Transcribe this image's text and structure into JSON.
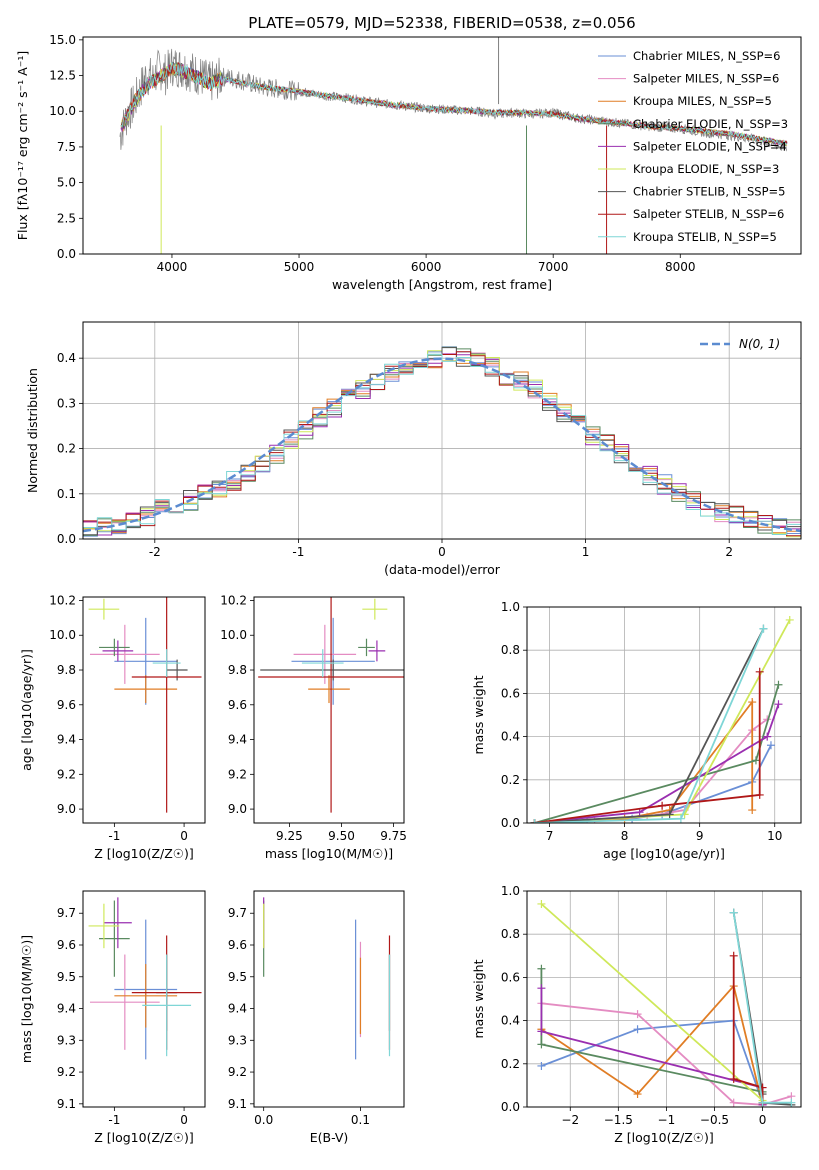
{
  "figure_title": "PLATE=0579, MJD=52338, FIBERID=0538, z=0.056",
  "series_names": [
    "Chabrier MILES, N_SSP=6",
    "Salpeter MILES, N_SSP=6",
    "Kroupa MILES, N_SSP=5",
    "Chabrier ELODIE, N_SSP=3",
    "Salpeter ELODIE, N_SSP=4",
    "Kroupa ELODIE, N_SSP=3",
    "Chabrier STELIB, N_SSP=5",
    "Salpeter STELIB, N_SSP=6",
    "Kroupa STELIB, N_SSP=5"
  ],
  "series_colors": [
    "#6a8fd6",
    "#e48cc2",
    "#e07d25",
    "#5a8a60",
    "#9a2fb0",
    "#cfe85a",
    "#555555",
    "#b01818",
    "#7fd6d6"
  ],
  "chart_data": [
    {
      "id": "spectrum",
      "type": "line",
      "title": "PLATE=0579, MJD=52338, FIBERID=0538, z=0.056",
      "xlabel": "wavelength [Angstrom, rest frame]",
      "ylabel": "Flux [fλ10⁻¹⁷ erg cm⁻² s⁻¹ A⁻¹]",
      "xlim": [
        3300,
        8950
      ],
      "ylim": [
        0,
        15.2
      ],
      "xticks": [
        4000,
        5000,
        6000,
        7000,
        8000
      ],
      "yticks": [
        0.0,
        2.5,
        5.0,
        7.5,
        10.0,
        12.5,
        15.0
      ],
      "legend_position": "top-right",
      "data_color": "#808080",
      "data_x": [
        3600,
        3650,
        3700,
        3750,
        3800,
        3850,
        3900,
        3950,
        4000,
        4100,
        4200,
        4300,
        4400,
        4500,
        4600,
        4700,
        4800,
        4900,
        5000,
        5200,
        5400,
        5600,
        5800,
        6000,
        6200,
        6400,
        6550,
        6700,
        6800,
        7000,
        7200,
        7400,
        7600,
        7800,
        8000,
        8200,
        8400,
        8600,
        8800
      ],
      "data_y": [
        8.5,
        9.8,
        10.5,
        11.5,
        12.6,
        12.2,
        13.0,
        12.6,
        13.2,
        13.0,
        12.6,
        12.0,
        12.4,
        12.3,
        12.0,
        11.7,
        11.6,
        11.5,
        11.4,
        11.1,
        10.9,
        10.6,
        10.4,
        10.2,
        10.1,
        10.0,
        9.8,
        9.9,
        9.8,
        9.9,
        9.5,
        9.3,
        9.1,
        8.9,
        8.8,
        8.5,
        8.3,
        8.0,
        7.5
      ],
      "model_x": [
        3600,
        3700,
        3800,
        3900,
        4000,
        4100,
        4200,
        4300,
        4400,
        4600,
        4800,
        5000,
        5200,
        5400,
        5600,
        5800,
        6000,
        6200,
        6400,
        6600,
        6800,
        7000,
        7200,
        7400,
        7600,
        7800,
        8000,
        8200,
        8400,
        8600,
        8800
      ],
      "model_y": [
        8.8,
        10.6,
        11.8,
        12.4,
        13.0,
        12.8,
        12.4,
        11.9,
        12.3,
        11.9,
        11.6,
        11.4,
        11.1,
        10.9,
        10.6,
        10.4,
        10.2,
        10.1,
        10.0,
        9.9,
        9.9,
        9.8,
        9.5,
        9.3,
        9.1,
        8.9,
        8.8,
        8.6,
        8.4,
        8.1,
        7.8
      ]
    },
    {
      "id": "residuals",
      "type": "line",
      "xlabel": "(data-model)/error",
      "ylabel": "Normed distribution",
      "xlim": [
        -2.5,
        2.5
      ],
      "ylim": [
        0,
        0.48
      ],
      "xticks": [
        -2,
        -1,
        0,
        1,
        2
      ],
      "yticks": [
        0.0,
        0.1,
        0.2,
        0.3,
        0.4
      ],
      "grid": true,
      "legend_position": "top-right",
      "legend_label": "N(0, 1)",
      "normal_color": "#5b8bd0",
      "bin_edges_start": -2.5,
      "bin_width": 0.1,
      "hist_base": [
        0.02,
        0.025,
        0.03,
        0.04,
        0.05,
        0.065,
        0.07,
        0.085,
        0.1,
        0.11,
        0.13,
        0.15,
        0.17,
        0.19,
        0.22,
        0.24,
        0.27,
        0.29,
        0.32,
        0.33,
        0.35,
        0.37,
        0.38,
        0.39,
        0.4,
        0.405,
        0.4,
        0.39,
        0.38,
        0.36,
        0.35,
        0.33,
        0.3,
        0.28,
        0.26,
        0.23,
        0.21,
        0.19,
        0.16,
        0.14,
        0.12,
        0.1,
        0.085,
        0.07,
        0.06,
        0.05,
        0.04,
        0.03,
        0.025,
        0.02
      ]
    },
    {
      "id": "age-vs-Z",
      "type": "scatter",
      "xlabel": "Z [log10(Z/Z☉)]",
      "ylabel": "age  [log10(age/yr)]",
      "xlim": [
        -1.45,
        0.3
      ],
      "ylim": [
        8.92,
        10.22
      ],
      "xticks": [
        -1,
        0
      ],
      "yticks": [
        9.0,
        9.2,
        9.4,
        9.6,
        9.8,
        10.0,
        10.2
      ],
      "points": [
        {
          "x": -0.55,
          "y": 9.85,
          "xerr": 0.45,
          "yerr": 0.25
        },
        {
          "x": -0.85,
          "y": 9.89,
          "xerr": 0.5,
          "yerr": 0.17
        },
        {
          "x": -0.55,
          "y": 9.69,
          "xerr": 0.45,
          "yerr": 0.08
        },
        {
          "x": -1.0,
          "y": 9.93,
          "xerr": 0.22,
          "yerr": 0.05
        },
        {
          "x": -0.95,
          "y": 9.91,
          "xerr": 0.22,
          "yerr": 0.06
        },
        {
          "x": -1.15,
          "y": 10.15,
          "xerr": 0.22,
          "yerr": 0.06
        },
        {
          "x": -0.1,
          "y": 9.8,
          "xerr": 0.15,
          "yerr": 0.06
        },
        {
          "x": -0.25,
          "y": 9.76,
          "xerr": 0.5,
          "yerr": 0.78
        },
        {
          "x": -0.25,
          "y": 9.84,
          "xerr": 0.2,
          "yerr": 0.08
        }
      ]
    },
    {
      "id": "age-vs-mass",
      "type": "scatter",
      "xlabel": "mass [log10(M/M☉)]",
      "ylabel": "",
      "xlim": [
        9.08,
        9.8
      ],
      "ylim": [
        8.92,
        10.22
      ],
      "xticks": [
        9.25,
        9.5,
        9.75
      ],
      "yticks": [
        9.0,
        9.2,
        9.4,
        9.6,
        9.8,
        10.0,
        10.2
      ],
      "points": [
        {
          "x": 9.46,
          "y": 9.85,
          "xerr": 0.2,
          "yerr": 0.25
        },
        {
          "x": 9.42,
          "y": 9.89,
          "xerr": 0.15,
          "yerr": 0.17
        },
        {
          "x": 9.44,
          "y": 9.69,
          "xerr": 0.1,
          "yerr": 0.08
        },
        {
          "x": 9.62,
          "y": 9.93,
          "xerr": 0.04,
          "yerr": 0.05
        },
        {
          "x": 9.67,
          "y": 9.91,
          "xerr": 0.04,
          "yerr": 0.06
        },
        {
          "x": 9.66,
          "y": 10.15,
          "xerr": 0.06,
          "yerr": 0.06
        },
        {
          "x": 9.46,
          "y": 9.8,
          "xerr": 0.35,
          "yerr": 0.06
        },
        {
          "x": 9.45,
          "y": 9.76,
          "xerr": 0.35,
          "yerr": 0.78
        },
        {
          "x": 9.41,
          "y": 9.84,
          "xerr": 0.1,
          "yerr": 0.08
        }
      ]
    },
    {
      "id": "massweight-vs-age",
      "type": "line",
      "xlabel": "age  [log10(age/yr)]",
      "ylabel": "mass weight",
      "xlim": [
        6.7,
        10.35
      ],
      "ylim": [
        0,
        1.0
      ],
      "xticks": [
        7,
        8,
        9,
        10
      ],
      "yticks": [
        0.0,
        0.2,
        0.4,
        0.6,
        0.8,
        1.0
      ],
      "grid": true,
      "series": [
        {
          "name": "Chabrier MILES, N_SSP=6",
          "x": [
            6.8,
            7.5,
            8.1,
            8.5,
            9.7,
            9.95
          ],
          "y": [
            0.0,
            0.01,
            0.02,
            0.04,
            0.19,
            0.36
          ]
        },
        {
          "name": "Salpeter MILES, N_SSP=6",
          "x": [
            6.8,
            7.6,
            8.3,
            8.8,
            9.7,
            9.9
          ],
          "y": [
            0.0,
            0.01,
            0.03,
            0.06,
            0.43,
            0.48
          ]
        },
        {
          "name": "Kroupa MILES, N_SSP=5",
          "x": [
            6.8,
            8.0,
            8.6,
            9.7,
            9.7
          ],
          "y": [
            0.0,
            0.02,
            0.06,
            0.56,
            0.06
          ]
        },
        {
          "name": "Chabrier ELODIE, N_SSP=3",
          "x": [
            6.8,
            9.75,
            10.05
          ],
          "y": [
            0.0,
            0.29,
            0.64
          ]
        },
        {
          "name": "Salpeter ELODIE, N_SSP=4",
          "x": [
            6.8,
            8.2,
            9.9,
            10.05
          ],
          "y": [
            0.0,
            0.05,
            0.4,
            0.55
          ]
        },
        {
          "name": "Kroupa ELODIE, N_SSP=3",
          "x": [
            6.8,
            8.8,
            10.2
          ],
          "y": [
            0.0,
            0.04,
            0.94
          ]
        },
        {
          "name": "Chabrier STELIB, N_SSP=5",
          "x": [
            6.8,
            8.6,
            9.85
          ],
          "y": [
            0.0,
            0.04,
            0.9
          ]
        },
        {
          "name": "Salpeter STELIB, N_SSP=6",
          "x": [
            6.8,
            8.5,
            9.8,
            9.8
          ],
          "y": [
            0.0,
            0.08,
            0.13,
            0.7
          ]
        },
        {
          "name": "Kroupa STELIB, N_SSP=5",
          "x": [
            6.8,
            8.75,
            9.85
          ],
          "y": [
            0.0,
            0.02,
            0.9
          ]
        }
      ]
    },
    {
      "id": "mass-vs-Z",
      "type": "scatter",
      "xlabel": "Z [log10(Z/Z☉)]",
      "ylabel": "mass [log10(M/M☉)]",
      "xlim": [
        -1.45,
        0.3
      ],
      "ylim": [
        9.09,
        9.77
      ],
      "xticks": [
        -1,
        0
      ],
      "yticks": [
        9.1,
        9.2,
        9.3,
        9.4,
        9.5,
        9.6,
        9.7
      ],
      "points": [
        {
          "x": -0.55,
          "y": 9.46,
          "xerr": 0.45,
          "yerr": 0.22
        },
        {
          "x": -0.85,
          "y": 9.42,
          "xerr": 0.5,
          "yerr": 0.15
        },
        {
          "x": -0.55,
          "y": 9.44,
          "xerr": 0.45,
          "yerr": 0.1
        },
        {
          "x": -1.0,
          "y": 9.62,
          "xerr": 0.22,
          "yerr": 0.12
        },
        {
          "x": -0.95,
          "y": 9.67,
          "xerr": 0.2,
          "yerr": 0.08
        },
        {
          "x": -1.15,
          "y": 9.66,
          "xerr": 0.22,
          "yerr": 0.07
        },
        {
          "x": -0.25,
          "y": 9.45,
          "xerr": 0.15,
          "yerr": 0.12
        },
        {
          "x": -0.25,
          "y": 9.45,
          "xerr": 0.5,
          "yerr": 0.18
        },
        {
          "x": -0.25,
          "y": 9.41,
          "xerr": 0.35,
          "yerr": 0.16
        }
      ]
    },
    {
      "id": "mass-vs-EBV",
      "type": "scatter",
      "xlabel": "E(B-V)",
      "ylabel": "",
      "xlim": [
        -0.01,
        0.145
      ],
      "ylim": [
        9.09,
        9.77
      ],
      "xticks": [
        0.0,
        0.1
      ],
      "yticks": [
        9.1,
        9.2,
        9.3,
        9.4,
        9.5,
        9.6,
        9.7
      ],
      "points": [
        {
          "x": 0.095,
          "y": 9.46,
          "yerr": 0.22
        },
        {
          "x": 0.1,
          "y": 9.46,
          "yerr": 0.15
        },
        {
          "x": 0.1,
          "y": 9.44,
          "yerr": 0.12
        },
        {
          "x": 0.0,
          "y": 9.62,
          "yerr": 0.12
        },
        {
          "x": 0.0,
          "y": 9.67,
          "yerr": 0.08
        },
        {
          "x": 0.0,
          "y": 9.66,
          "yerr": 0.07
        },
        {
          "x": 0.13,
          "y": 9.45,
          "yerr": 0.12
        },
        {
          "x": 0.13,
          "y": 9.45,
          "yerr": 0.18
        },
        {
          "x": 0.13,
          "y": 9.41,
          "yerr": 0.16
        }
      ]
    },
    {
      "id": "massweight-vs-Z",
      "type": "line",
      "xlabel": "Z [log10(Z/Z☉)]",
      "ylabel": "mass weight",
      "xlim": [
        -2.45,
        0.4
      ],
      "ylim": [
        0,
        1.0
      ],
      "xticks": [
        -2.0,
        -1.5,
        -1.0,
        -0.5,
        0.0
      ],
      "yticks": [
        0.0,
        0.2,
        0.4,
        0.6,
        0.8,
        1.0
      ],
      "grid": true,
      "series": [
        {
          "name": "Chabrier MILES, N_SSP=6",
          "x": [
            -2.3,
            -1.3,
            -0.3,
            0.0,
            0.0
          ],
          "y": [
            0.19,
            0.36,
            0.4,
            0.02,
            0.01
          ]
        },
        {
          "name": "Salpeter MILES, N_SSP=6",
          "x": [
            -2.3,
            -1.3,
            -0.3,
            0.0,
            0.3
          ],
          "y": [
            0.48,
            0.43,
            0.02,
            0.01,
            0.05
          ]
        },
        {
          "name": "Kroupa MILES, N_SSP=5",
          "x": [
            -2.3,
            -1.3,
            -0.3,
            0.0
          ],
          "y": [
            0.36,
            0.06,
            0.56,
            0.01
          ]
        },
        {
          "name": "Chabrier ELODIE, N_SSP=3",
          "x": [
            -2.3,
            -2.3,
            0.0
          ],
          "y": [
            0.64,
            0.29,
            0.07
          ]
        },
        {
          "name": "Salpeter ELODIE, N_SSP=4",
          "x": [
            -2.3,
            -2.3,
            0.0,
            0.0
          ],
          "y": [
            0.55,
            0.35,
            0.09,
            0.01
          ]
        },
        {
          "name": "Kroupa ELODIE, N_SSP=3",
          "x": [
            -2.3,
            0.0,
            0.0
          ],
          "y": [
            0.94,
            0.03,
            0.02
          ]
        },
        {
          "name": "Chabrier STELIB, N_SSP=5",
          "x": [
            -0.3,
            0.0,
            0.0,
            0.3
          ],
          "y": [
            0.9,
            0.06,
            0.02,
            0.01
          ]
        },
        {
          "name": "Salpeter STELIB, N_SSP=6",
          "x": [
            -0.3,
            -0.3,
            0.0,
            0.0
          ],
          "y": [
            0.7,
            0.13,
            0.09,
            0.02
          ]
        },
        {
          "name": "Kroupa STELIB, N_SSP=5",
          "x": [
            -0.3,
            0.0,
            0.3
          ],
          "y": [
            0.9,
            0.02,
            0.02
          ]
        }
      ]
    }
  ]
}
